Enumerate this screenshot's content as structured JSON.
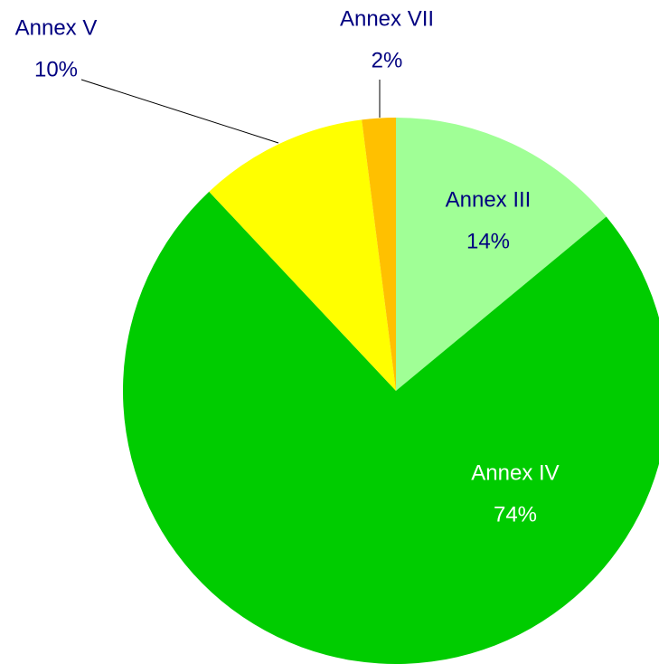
{
  "chart_data": {
    "type": "pie",
    "categories": [
      "Annex III",
      "Annex IV",
      "Annex V",
      "Annex VII"
    ],
    "values": [
      14,
      74,
      10,
      2
    ],
    "value_labels": [
      "14%",
      "74%",
      "10%",
      "2%"
    ],
    "colors": [
      "#a0ff96",
      "#00cc00",
      "#ffff00",
      "#ffc000"
    ]
  }
}
